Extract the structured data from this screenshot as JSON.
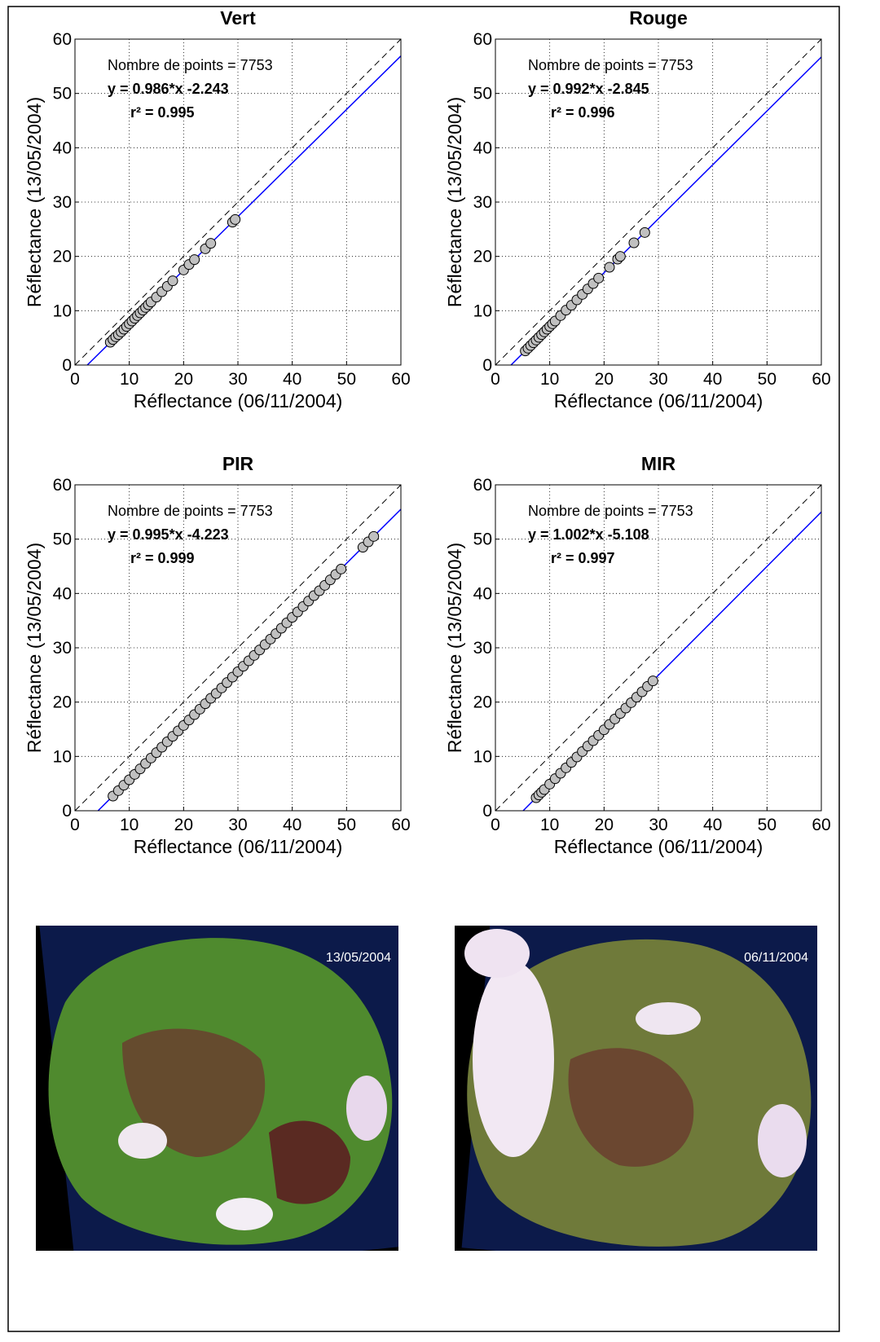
{
  "chart_data": [
    {
      "type": "scatter",
      "title": "Vert",
      "xlabel": "Réflectance (06/11/2004)",
      "ylabel": "Réflectance (13/05/2004)",
      "annotations": [
        "Nombre de points = 7753",
        "y = 0.986*x -2.243",
        "r² = 0.995"
      ],
      "xlim": [
        0,
        60
      ],
      "ylim": [
        0,
        60
      ],
      "xticks": [
        0,
        10,
        20,
        30,
        40,
        50,
        60
      ],
      "yticks": [
        0,
        10,
        20,
        30,
        40,
        50,
        60
      ],
      "grid": true,
      "series": [
        {
          "type": "scatter",
          "color": "#c0c0c0",
          "x": [
            6.5,
            7,
            7.5,
            8,
            8.5,
            9,
            9.5,
            10,
            10.5,
            11,
            11.5,
            12,
            12.5,
            13,
            13.5,
            14,
            15,
            16,
            17,
            18,
            20,
            21,
            22,
            24,
            25,
            29,
            29.5
          ],
          "values": [
            4.2,
            4.7,
            5.2,
            5.6,
            6.1,
            6.6,
            7.1,
            7.6,
            8.1,
            8.6,
            9.1,
            9.6,
            10.1,
            10.6,
            11.1,
            11.6,
            12.5,
            13.5,
            14.5,
            15.5,
            17.5,
            18.5,
            19.4,
            21.4,
            22.4,
            26.3,
            26.8
          ]
        },
        {
          "type": "line",
          "color": "#0000ff",
          "x": [
            2.27,
            60
          ],
          "values": [
            0,
            56.9
          ]
        },
        {
          "type": "line",
          "color": "#000000",
          "dash": true,
          "x": [
            0,
            60
          ],
          "values": [
            0,
            60
          ]
        }
      ]
    },
    {
      "type": "scatter",
      "title": "Rouge",
      "xlabel": "Réflectance (06/11/2004)",
      "ylabel": "Réflectance (13/05/2004)",
      "annotations": [
        "Nombre de points = 7753",
        "y = 0.992*x -2.845",
        "r² = 0.996"
      ],
      "xlim": [
        0,
        60
      ],
      "ylim": [
        0,
        60
      ],
      "xticks": [
        0,
        10,
        20,
        30,
        40,
        50,
        60
      ],
      "yticks": [
        0,
        10,
        20,
        30,
        40,
        50,
        60
      ],
      "grid": true,
      "series": [
        {
          "type": "scatter",
          "color": "#c0c0c0",
          "x": [
            5.5,
            6,
            6.5,
            7,
            7.5,
            8,
            8.5,
            9,
            9.5,
            10,
            10.5,
            11,
            12,
            13,
            14,
            15,
            16,
            17,
            18,
            19,
            21,
            22.5,
            23,
            25.5,
            27.5
          ],
          "values": [
            2.6,
            3.1,
            3.6,
            4.1,
            4.6,
            5.1,
            5.6,
            6.1,
            6.6,
            7.1,
            7.6,
            8.1,
            9.1,
            10.1,
            11.0,
            12.0,
            13.0,
            14.0,
            15.0,
            16.0,
            18.0,
            19.5,
            20.0,
            22.5,
            24.4
          ]
        },
        {
          "type": "line",
          "color": "#0000ff",
          "x": [
            2.87,
            60
          ],
          "values": [
            0,
            56.7
          ]
        },
        {
          "type": "line",
          "color": "#000000",
          "dash": true,
          "x": [
            0,
            60
          ],
          "values": [
            0,
            60
          ]
        }
      ]
    },
    {
      "type": "scatter",
      "title": "PIR",
      "xlabel": "Réflectance (06/11/2004)",
      "ylabel": "Réflectance (13/05/2004)",
      "annotations": [
        "Nombre de points = 7753",
        "y = 0.995*x -4.223",
        "r² = 0.999"
      ],
      "xlim": [
        0,
        60
      ],
      "ylim": [
        0,
        60
      ],
      "xticks": [
        0,
        10,
        20,
        30,
        40,
        50,
        60
      ],
      "yticks": [
        0,
        10,
        20,
        30,
        40,
        50,
        60
      ],
      "grid": true,
      "series": [
        {
          "type": "scatter",
          "color": "#c0c0c0",
          "x": [
            7,
            8,
            9,
            10,
            11,
            12,
            13,
            14,
            15,
            16,
            17,
            18,
            19,
            20,
            21,
            22,
            23,
            24,
            25,
            26,
            27,
            28,
            29,
            30,
            31,
            32,
            33,
            34,
            35,
            36,
            37,
            38,
            39,
            40,
            41,
            42,
            43,
            44,
            45,
            46,
            47,
            48,
            49,
            53,
            54,
            55
          ],
          "values": [
            2.7,
            3.7,
            4.7,
            5.7,
            6.7,
            7.7,
            8.7,
            9.7,
            10.7,
            11.7,
            12.7,
            13.7,
            14.7,
            15.7,
            16.7,
            17.7,
            18.7,
            19.7,
            20.7,
            21.6,
            22.6,
            23.6,
            24.6,
            25.6,
            26.6,
            27.6,
            28.6,
            29.6,
            30.6,
            31.6,
            32.6,
            33.6,
            34.6,
            35.6,
            36.6,
            37.6,
            38.6,
            39.6,
            40.5,
            41.5,
            42.5,
            43.5,
            44.5,
            48.5,
            49.5,
            50.5
          ]
        },
        {
          "type": "line",
          "color": "#0000ff",
          "x": [
            4.24,
            60
          ],
          "values": [
            0,
            55.5
          ]
        },
        {
          "type": "line",
          "color": "#000000",
          "dash": true,
          "x": [
            0,
            60
          ],
          "values": [
            0,
            60
          ]
        }
      ]
    },
    {
      "type": "scatter",
      "title": "MIR",
      "xlabel": "Réflectance (06/11/2004)",
      "ylabel": "Réflectance (13/05/2004)",
      "annotations": [
        "Nombre de points = 7753",
        "y = 1.002*x -5.108",
        "r² = 0.997"
      ],
      "xlim": [
        0,
        60
      ],
      "ylim": [
        0,
        60
      ],
      "xticks": [
        0,
        10,
        20,
        30,
        40,
        50,
        60
      ],
      "yticks": [
        0,
        10,
        20,
        30,
        40,
        50,
        60
      ],
      "grid": true,
      "series": [
        {
          "type": "scatter",
          "color": "#c0c0c0",
          "x": [
            7.5,
            8,
            8.5,
            9,
            10,
            11,
            12,
            13,
            14,
            15,
            16,
            17,
            18,
            19,
            20,
            21,
            22,
            23,
            24,
            25,
            26,
            27,
            28,
            29
          ],
          "values": [
            2.4,
            2.9,
            3.4,
            3.9,
            4.9,
            5.9,
            6.9,
            7.9,
            8.9,
            9.9,
            10.9,
            11.9,
            12.9,
            13.9,
            14.9,
            15.9,
            16.9,
            17.9,
            18.9,
            19.9,
            20.9,
            21.9,
            22.9,
            23.9
          ]
        },
        {
          "type": "line",
          "color": "#0000ff",
          "x": [
            5.1,
            60
          ],
          "values": [
            0,
            55.0
          ]
        },
        {
          "type": "line",
          "color": "#000000",
          "dash": true,
          "x": [
            0,
            60
          ],
          "values": [
            0,
            60
          ]
        }
      ]
    }
  ],
  "images": [
    {
      "label": "13/05/2004"
    },
    {
      "label": "06/11/2004"
    }
  ]
}
